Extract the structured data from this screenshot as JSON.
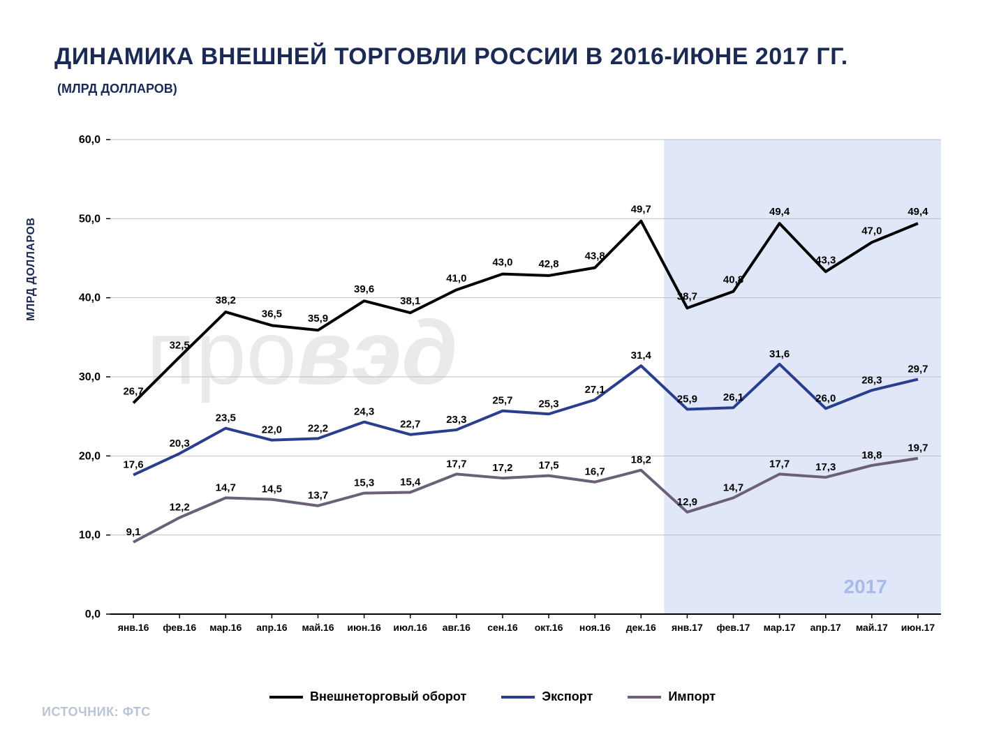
{
  "title": "ДИНАМИКА ВНЕШНЕЙ ТОРГОВЛИ РОССИИ В 2016-ИЮНЕ 2017 ГГ.",
  "subtitle": "(МЛРД ДОЛЛАРОВ)",
  "source": "ИСТОЧНИК: ФТС",
  "ylabel": "МЛРД ДОЛЛАРОВ",
  "watermark_plain": "про",
  "watermark_bold": "вэд",
  "chart": {
    "type": "line",
    "background_color": "#ffffff",
    "highlight_band": {
      "from_index": 12,
      "to_index": 18,
      "fill": "#c7d3f2",
      "opacity": 0.55,
      "label": "2017",
      "label_color": "#a9bae6",
      "label_fontsize": 28
    },
    "ylim": [
      0,
      60
    ],
    "ytick_step": 10,
    "yticks": [
      "0,0",
      "10,0",
      "20,0",
      "30,0",
      "40,0",
      "50,0",
      "60,0"
    ],
    "grid_color": "#bfbfbf",
    "axis_color": "#000000",
    "xlabels": [
      "янв.16",
      "фев.16",
      "мар.16",
      "апр.16",
      "май.16",
      "июн.16",
      "июл.16",
      "авг.16",
      "сен.16",
      "окт.16",
      "ноя.16",
      "дек.16",
      "янв.17",
      "фев.17",
      "мар.17",
      "апр.17",
      "май.17",
      "июн.17"
    ],
    "xlabel_fontsize": 14,
    "ylabel_fontsize": 16,
    "tick_fontsize": 16,
    "datalabel_fontsize": 15,
    "legend_fontsize": 18,
    "line_width": 4,
    "series": [
      {
        "name": "Внешнеторговый оборот",
        "color": "#000000",
        "values": [
          26.7,
          32.5,
          38.2,
          36.5,
          35.9,
          39.6,
          38.1,
          41.0,
          43.0,
          42.8,
          43.8,
          49.7,
          38.7,
          40.8,
          49.4,
          43.3,
          47.0,
          49.4
        ],
        "labels": [
          "26,7",
          "32,5",
          "38,2",
          "36,5",
          "35,9",
          "39,6",
          "38,1",
          "41,0",
          "43,0",
          "42,8",
          "43,8",
          "49,7",
          "38,7",
          "40,8",
          "49,4",
          "43,3",
          "47,0",
          "49,4"
        ]
      },
      {
        "name": "Экспорт",
        "color": "#2a3d8f",
        "values": [
          17.6,
          20.3,
          23.5,
          22.0,
          22.2,
          24.3,
          22.7,
          23.3,
          25.7,
          25.3,
          27.1,
          31.4,
          25.9,
          26.1,
          31.6,
          26.0,
          28.3,
          29.7
        ],
        "labels": [
          "17,6",
          "20,3",
          "23,5",
          "22,0",
          "22,2",
          "24,3",
          "22,7",
          "23,3",
          "25,7",
          "25,3",
          "27,1",
          "31,4",
          "25,9",
          "26,1",
          "31,6",
          "26,0",
          "28,3",
          "29,7"
        ]
      },
      {
        "name": "Импорт",
        "color": "#6b6075",
        "values": [
          9.1,
          12.2,
          14.7,
          14.5,
          13.7,
          15.3,
          15.4,
          17.7,
          17.2,
          17.5,
          16.7,
          18.2,
          12.9,
          14.7,
          17.7,
          17.3,
          18.8,
          19.7
        ],
        "labels": [
          "9,1",
          "12,2",
          "14,7",
          "14,5",
          "13,7",
          "15,3",
          "15,4",
          "17,7",
          "17,2",
          "17,5",
          "16,7",
          "18,2",
          "12,9",
          "14,7",
          "17,7",
          "17,3",
          "18,8",
          "19,7"
        ]
      }
    ]
  }
}
